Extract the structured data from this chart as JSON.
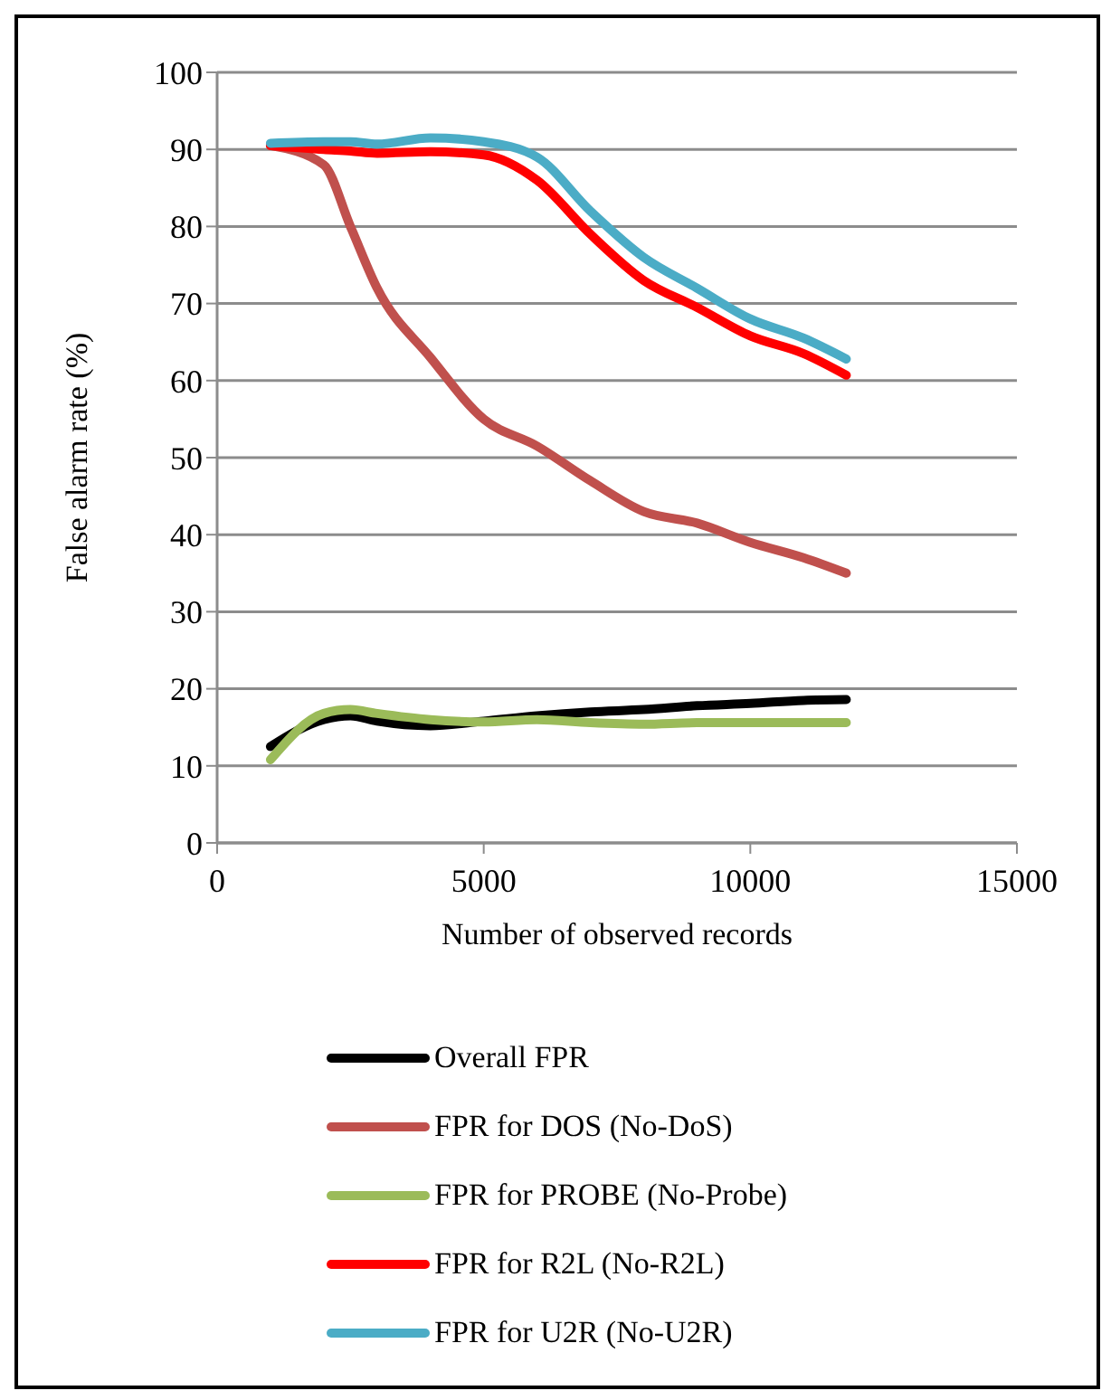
{
  "chart_data": {
    "type": "line",
    "xlabel": "Number of observed records",
    "ylabel": "False alarm rate (%)",
    "x": [
      1000,
      2000,
      2500,
      3000,
      4000,
      5000,
      6000,
      7000,
      8000,
      9000,
      10000,
      11000,
      11800
    ],
    "xlim": [
      0,
      15000
    ],
    "xticks": [
      0,
      5000,
      10000,
      15000
    ],
    "ylim": [
      0,
      100
    ],
    "yticks": [
      0,
      10,
      20,
      30,
      40,
      50,
      60,
      70,
      80,
      90,
      100
    ],
    "grid": "y",
    "legend": "bottom",
    "marker": "none",
    "line_style": "solid",
    "series": [
      {
        "name": "Overall FPR",
        "color": "#000000",
        "values": [
          12.5,
          16,
          16.5,
          15.8,
          15.2,
          15.8,
          16.5,
          17,
          17.3,
          17.8,
          18.1,
          18.5,
          18.6
        ]
      },
      {
        "name": "FPR for DOS (No-DoS)",
        "color": "#c0504d",
        "values": [
          90.5,
          88,
          80,
          72,
          63,
          55,
          51.5,
          47,
          43,
          41.5,
          39,
          37,
          35
        ]
      },
      {
        "name": "FPR for PROBE (No-Probe)",
        "color": "#9bbb59",
        "values": [
          10.8,
          16.8,
          17.3,
          16.8,
          16,
          15.7,
          16,
          15.6,
          15.4,
          15.6,
          15.6,
          15.6,
          15.6
        ]
      },
      {
        "name": "FPR for R2L (No-R2L)",
        "color": "#ff0000",
        "values": [
          90.5,
          90,
          89.8,
          89.5,
          89.7,
          89.3,
          86,
          79,
          73,
          69.5,
          65.8,
          63.5,
          60.7
        ]
      },
      {
        "name": "FPR for U2R (No-U2R)",
        "color": "#4bacc6",
        "values": [
          90.8,
          91,
          91,
          90.7,
          91.5,
          91,
          89,
          82,
          76,
          72,
          68,
          65.5,
          62.8
        ]
      }
    ]
  }
}
